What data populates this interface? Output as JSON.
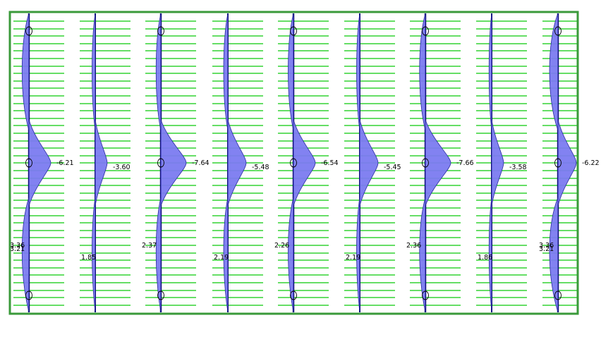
{
  "diagram": {
    "frame_color": "#3a9a3a",
    "slab_line_color": "#33d433",
    "member_color": "#000066",
    "moment_fill": "#7b7bf0",
    "moment_stroke": "#2a2aa0",
    "support_symbol": "circle",
    "members": [
      {
        "id": "m1",
        "peak_label": "-6.21",
        "low_labels": [
          "3.36",
          "3.21"
        ]
      },
      {
        "id": "m2",
        "peak_label": "-3.60",
        "low_labels": [
          "1.85"
        ]
      },
      {
        "id": "m3",
        "peak_label": "-7.64",
        "low_labels": [
          "2.37"
        ]
      },
      {
        "id": "m4",
        "peak_label": "-5.48",
        "low_labels": [
          "2.19"
        ]
      },
      {
        "id": "m5",
        "peak_label": "-6.54",
        "low_labels": [
          "2.26"
        ]
      },
      {
        "id": "m6",
        "peak_label": "-5.45",
        "low_labels": [
          "2.19"
        ]
      },
      {
        "id": "m7",
        "peak_label": "-7.66",
        "low_labels": [
          "2.36"
        ]
      },
      {
        "id": "m8",
        "peak_label": "-3.58",
        "low_labels": [
          "1.86"
        ]
      },
      {
        "id": "m9",
        "peak_label": "-6.22",
        "low_labels": [
          "3.36",
          "3.21"
        ]
      }
    ]
  }
}
